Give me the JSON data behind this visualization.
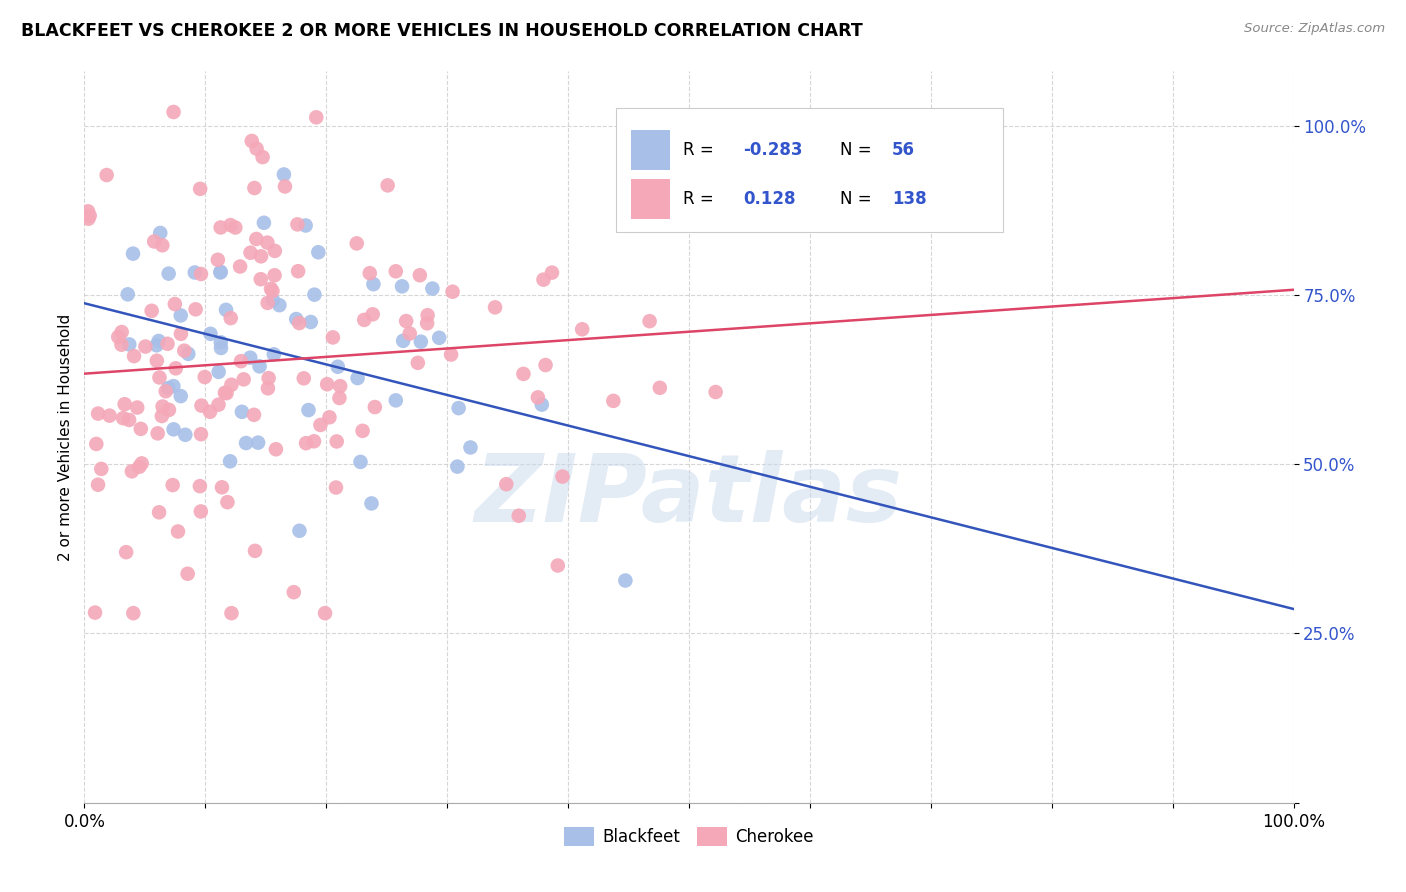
{
  "title": "BLACKFEET VS CHEROKEE 2 OR MORE VEHICLES IN HOUSEHOLD CORRELATION CHART",
  "source": "Source: ZipAtlas.com",
  "ylabel": "2 or more Vehicles in Household",
  "watermark": "ZIPatlas",
  "blackfeet_R": -0.283,
  "blackfeet_N": 56,
  "cherokee_R": 0.128,
  "cherokee_N": 138,
  "blackfeet_color": "#a8bfe8",
  "cherokee_color": "#f4a8b8",
  "blackfeet_line_color": "#3355bb",
  "cherokee_line_color": "#dd4466",
  "ytick_vals": [
    0.0,
    0.25,
    0.5,
    0.75,
    1.0
  ],
  "ytick_labels": [
    "",
    "25.0%",
    "50.0%",
    "75.0%",
    "100.0%"
  ],
  "xlim": [
    0.0,
    1.0
  ],
  "ylim": [
    0.0,
    1.08
  ]
}
